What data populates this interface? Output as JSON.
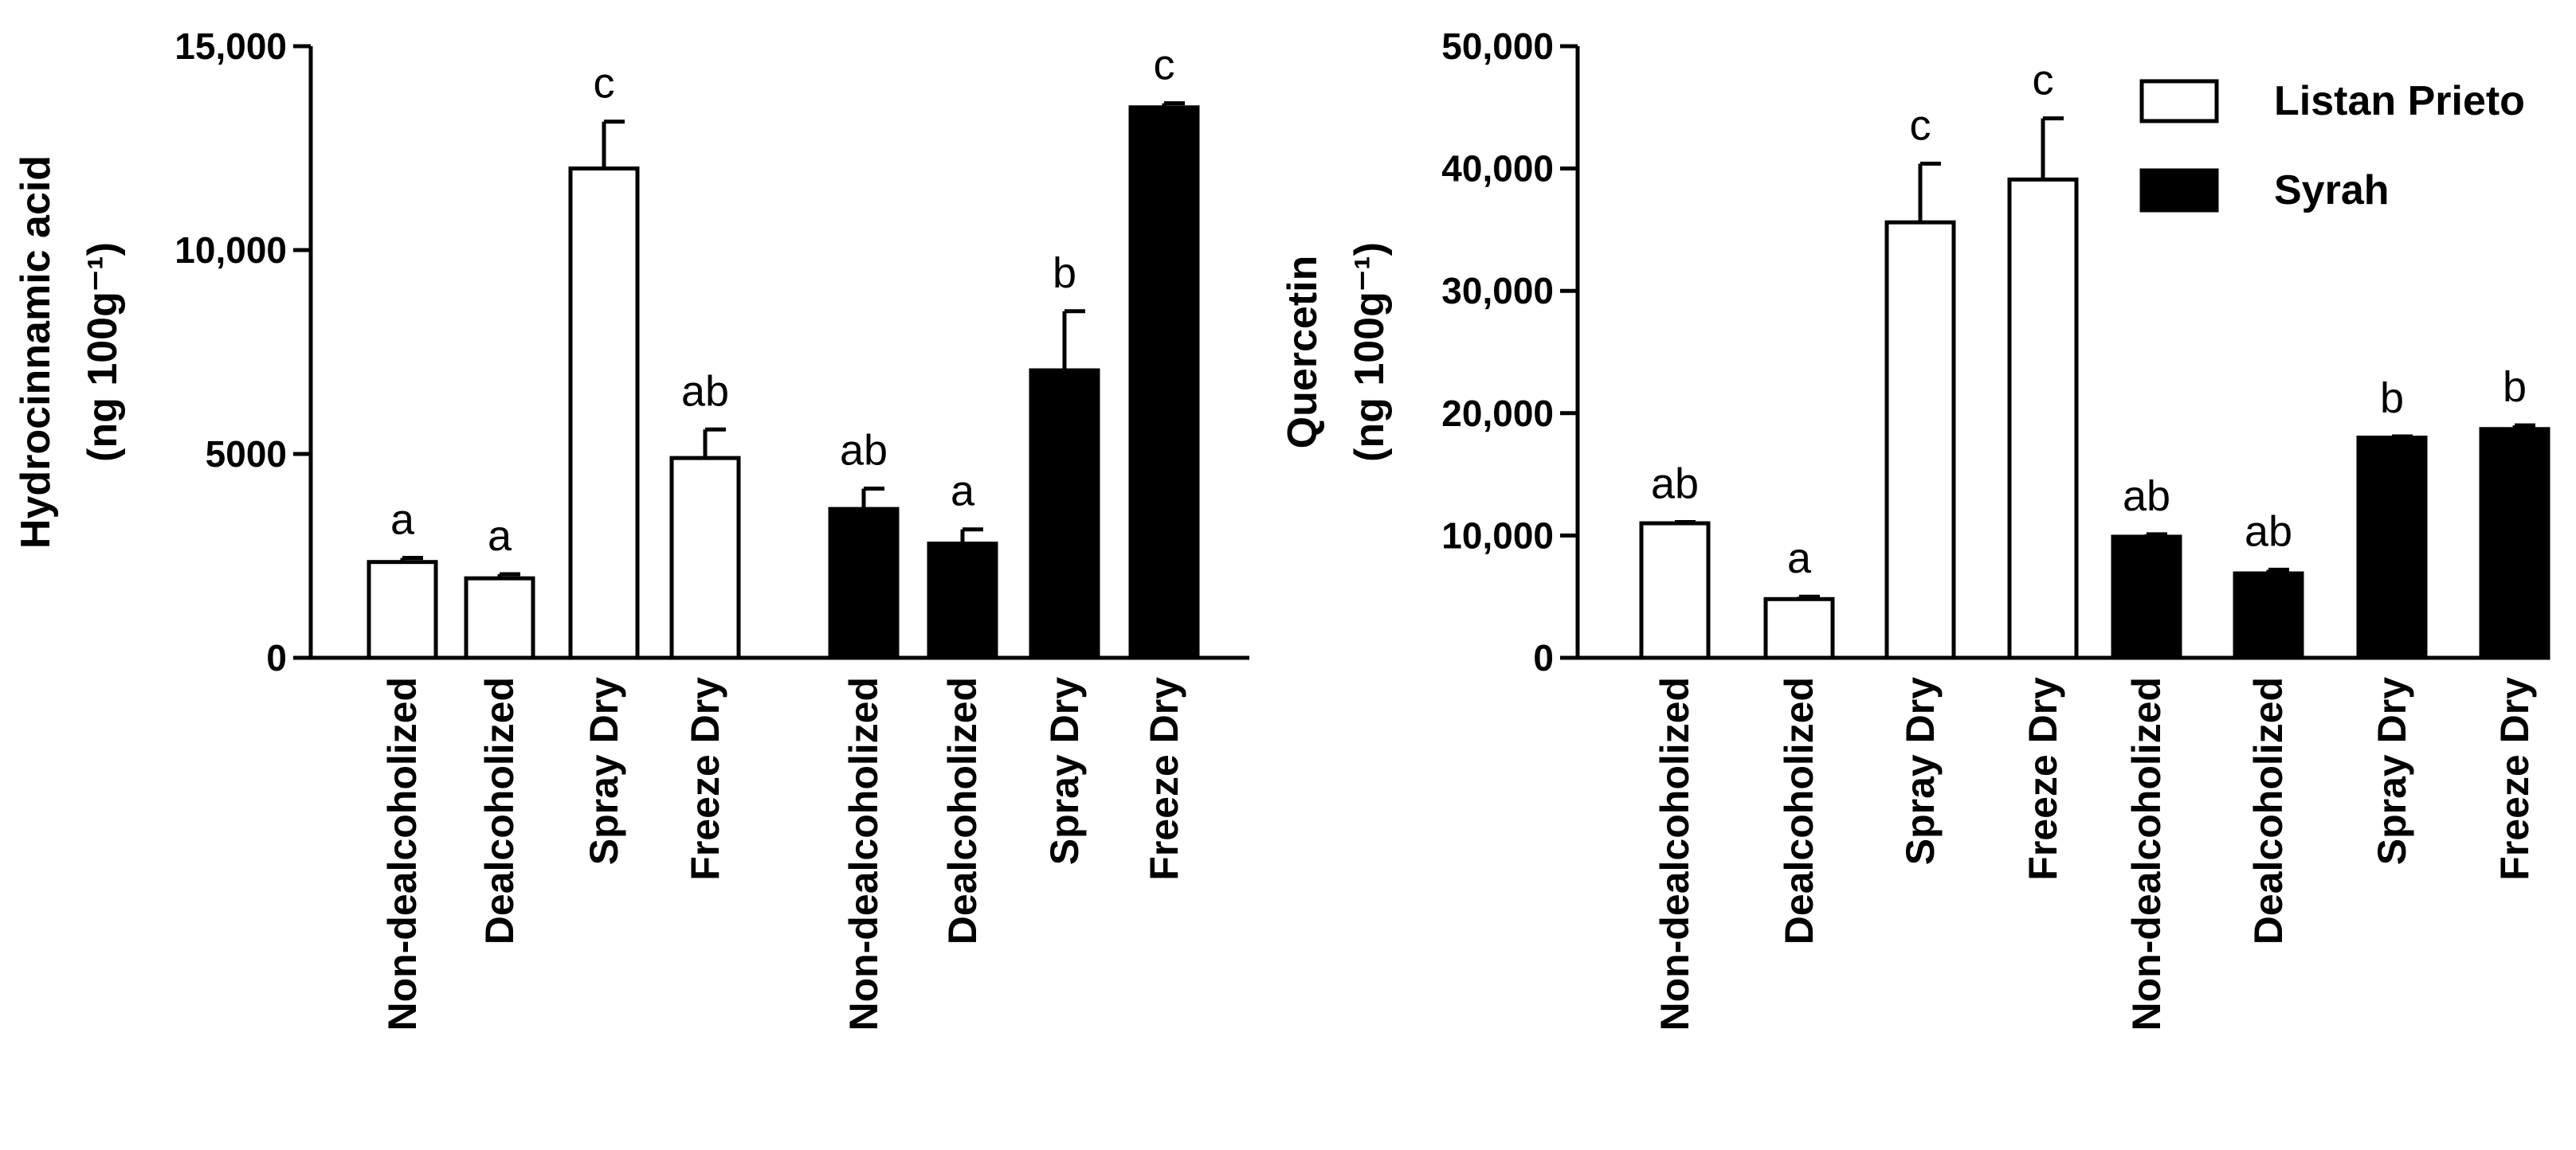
{
  "chart_data": [
    {
      "type": "bar",
      "ylabel_line1": "Hydrocinnamic acid",
      "ylabel_line2": "(ng 100g⁻¹)",
      "ylim": [
        0,
        15000
      ],
      "yticks": [
        "0",
        "5000",
        "10,000",
        "15,000"
      ],
      "ytick_values": [
        0,
        5000,
        10000,
        15000
      ],
      "groups": [
        {
          "name": "Listan Prieto",
          "fill": "#ffffff",
          "categories": [
            "Non-dealcoholized",
            "Dealcoholized",
            "Spray Dry",
            "Freeze Dry"
          ],
          "values": [
            2350,
            1950,
            12000,
            4900
          ],
          "errors": [
            100,
            100,
            1150,
            700
          ],
          "letters": [
            "a",
            "a",
            "c",
            "ab"
          ]
        },
        {
          "name": "Syrah",
          "fill": "#000000",
          "categories": [
            "Non-dealcoholized",
            "Dealcoholized",
            "Spray Dry",
            "Freeze Dry"
          ],
          "values": [
            3650,
            2800,
            7050,
            13500
          ],
          "errors": [
            500,
            350,
            1450,
            100
          ],
          "letters": [
            "ab",
            "a",
            "b",
            "c"
          ]
        }
      ]
    },
    {
      "type": "bar",
      "ylabel_line1": "Quercetin",
      "ylabel_line2": "(ng 100g⁻¹)",
      "ylim": [
        0,
        50000
      ],
      "yticks": [
        "0",
        "10,000",
        "20,000",
        "30,000",
        "40,000",
        "50,000"
      ],
      "ytick_values": [
        0,
        10000,
        20000,
        30000,
        40000,
        50000
      ],
      "legend": [
        {
          "label": "Listan Prieto",
          "fill": "#ffffff"
        },
        {
          "label": "Syrah",
          "fill": "#000000"
        }
      ],
      "groups": [
        {
          "name": "Listan Prieto",
          "fill": "#ffffff",
          "categories": [
            "Non-dealcoholized",
            "Dealcoholized",
            "Spray Dry",
            "Freeze Dry"
          ],
          "values": [
            11000,
            4800,
            35600,
            39100
          ],
          "errors": [
            100,
            200,
            4800,
            5000
          ],
          "letters": [
            "ab",
            "a",
            "c",
            "c"
          ]
        },
        {
          "name": "Syrah",
          "fill": "#000000",
          "categories": [
            "Non-dealcoholized",
            "Dealcoholized",
            "Spray Dry",
            "Freeze Dry"
          ],
          "values": [
            9900,
            6900,
            18000,
            18700
          ],
          "errors": [
            200,
            300,
            100,
            300
          ],
          "letters": [
            "ab",
            "ab",
            "b",
            "b"
          ]
        }
      ]
    }
  ]
}
